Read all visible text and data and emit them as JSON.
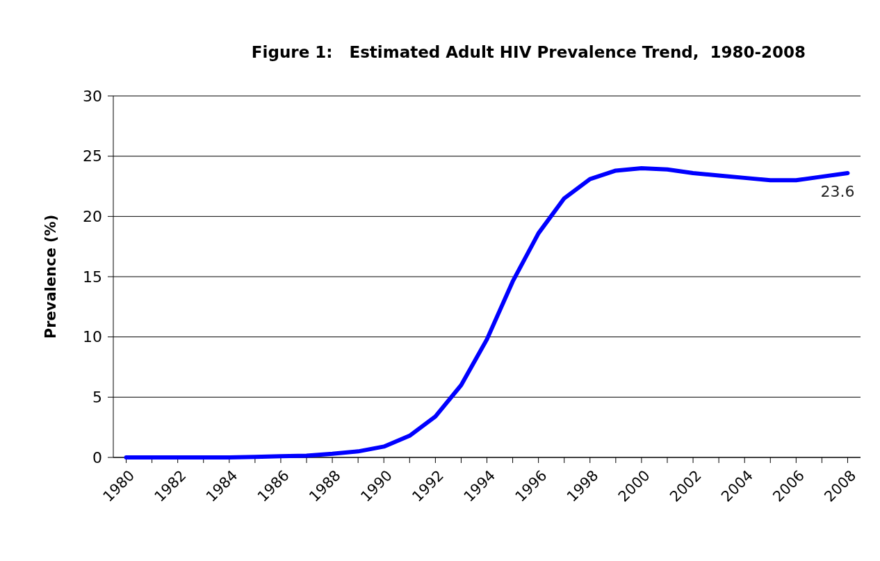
{
  "chart_data": {
    "type": "line",
    "title": "Figure 1:   Estimated Adult HIV Prevalence Trend,  1980-2008",
    "ylabel": "Prevalence (%)",
    "categories": [
      "1980",
      null,
      "1982",
      null,
      "1984",
      null,
      "1986",
      null,
      "1988",
      null,
      "1990",
      null,
      "1992",
      null,
      "1994",
      null,
      "1996",
      null,
      "1998",
      null,
      "2000",
      null,
      "2002",
      null,
      "2004",
      null,
      "2006",
      null,
      "2008"
    ],
    "series": [
      {
        "color": "#0000ff",
        "values": [
          0,
          0,
          0,
          0,
          0,
          0.05,
          0.1,
          0.15,
          0.3,
          0.5,
          0.9,
          1.8,
          3.4,
          6.0,
          9.8,
          14.6,
          18.6,
          21.5,
          23.1,
          23.8,
          24.0,
          23.9,
          23.6,
          23.4,
          23.2,
          23.0,
          23.0,
          23.3,
          23.6
        ],
        "value_labels": [
          null,
          null,
          null,
          null,
          null,
          null,
          null,
          null,
          null,
          null,
          null,
          null,
          null,
          null,
          null,
          null,
          null,
          null,
          null,
          null,
          null,
          null,
          null,
          null,
          null,
          null,
          null,
          null,
          "23.6"
        ]
      }
    ],
    "ylim": [
      0,
      30
    ],
    "yticks": [
      0,
      5,
      10,
      15,
      20,
      25,
      30
    ],
    "grid": "y",
    "marker": "none",
    "line_style": "solid"
  }
}
